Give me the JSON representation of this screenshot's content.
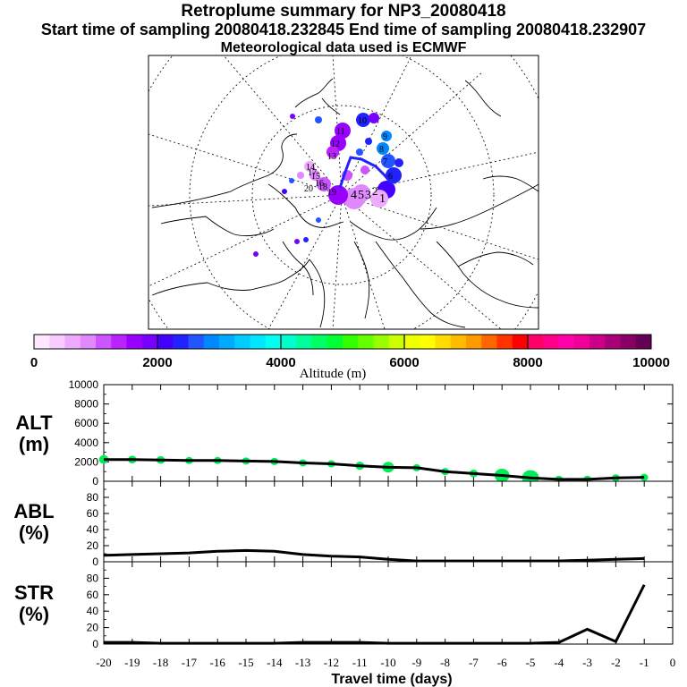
{
  "header": {
    "title": "Retroplume summary for NP3_20080418",
    "sampling_line": "Start time of sampling 20080418.232845     End time of sampling 20080418.232907",
    "met_line": "Meteorological data used is ECMWF"
  },
  "map": {
    "labels": [
      "11",
      "12",
      "13",
      "14",
      "15",
      "16",
      "17",
      "18",
      "19",
      "20",
      "1",
      "2",
      "3",
      "4",
      "5",
      "6",
      "7",
      "8",
      "9",
      "10"
    ]
  },
  "colorbar": {
    "ticks": [
      "0",
      "2000",
      "4000",
      "6000",
      "8000",
      "10000"
    ],
    "label": "Altitude (m)",
    "colors": [
      "#ffe8ff",
      "#f8ccff",
      "#eeaaff",
      "#e088ff",
      "#cc55ff",
      "#bb22ff",
      "#9900ff",
      "#7700ff",
      "#4400ff",
      "#2222ff",
      "#2255ff",
      "#0088ff",
      "#00aaff",
      "#00ccff",
      "#00e6ff",
      "#00ffee",
      "#00ffcc",
      "#00ff99",
      "#00ff66",
      "#00ff33",
      "#33ff00",
      "#66ff00",
      "#99ff00",
      "#ccff00",
      "#eeff00",
      "#ffff00",
      "#ffdd00",
      "#ffbb00",
      "#ff9900",
      "#ff6600",
      "#ff3300",
      "#ff0000",
      "#ff0066",
      "#ff0088",
      "#ff00aa",
      "#ee0099",
      "#cc0088",
      "#aa0077",
      "#880066",
      "#660055"
    ]
  },
  "chart_data": [
    {
      "type": "line",
      "title": "ALT (m)",
      "ylabel_line1": "ALT",
      "ylabel_line2": "(m)",
      "ylim": [
        0,
        10000
      ],
      "yticks": [
        "0",
        "2000",
        "4000",
        "6000",
        "8000",
        "10000"
      ],
      "x": [
        -20,
        -19,
        -18,
        -17,
        -16,
        -15,
        -14,
        -13,
        -12,
        -11,
        -10,
        -9,
        -8,
        -7,
        -6,
        -5,
        -4,
        -3,
        -2,
        -1
      ],
      "values": [
        2250,
        2250,
        2200,
        2150,
        2150,
        2100,
        2050,
        1900,
        1800,
        1600,
        1450,
        1400,
        1000,
        800,
        600,
        350,
        200,
        200,
        350,
        400
      ],
      "spread": [
        900,
        800,
        800,
        700,
        650,
        550,
        500,
        650,
        700,
        850,
        1100,
        700,
        650,
        800,
        1400,
        1600,
        400,
        450,
        550,
        600
      ]
    },
    {
      "type": "line",
      "title": "ABL (%)",
      "ylabel_line1": "ABL",
      "ylabel_line2": "(%)",
      "ylim": [
        0,
        100
      ],
      "yticks": [
        "0",
        "20",
        "40",
        "60",
        "80"
      ],
      "x": [
        -20,
        -19,
        -18,
        -17,
        -16,
        -15,
        -14,
        -13,
        -12,
        -11,
        -10,
        -9,
        -8,
        -7,
        -6,
        -5,
        -4,
        -3,
        -2,
        -1
      ],
      "values": [
        8,
        9,
        10,
        11,
        13,
        14,
        13,
        9,
        7,
        6,
        3,
        1,
        1,
        1,
        1,
        1,
        1,
        2,
        3,
        4
      ]
    },
    {
      "type": "line",
      "title": "STR (%)",
      "ylabel_line1": "STR",
      "ylabel_line2": "(%)",
      "ylim": [
        0,
        100
      ],
      "yticks": [
        "0",
        "20",
        "40",
        "60",
        "80"
      ],
      "x": [
        -20,
        -19,
        -18,
        -17,
        -16,
        -15,
        -14,
        -13,
        -12,
        -11,
        -10,
        -9,
        -8,
        -7,
        -6,
        -5,
        -4,
        -3,
        -2,
        -1
      ],
      "values": [
        2,
        2,
        1,
        1,
        1,
        1,
        1,
        2,
        2,
        2,
        1,
        1,
        1,
        1,
        1,
        1,
        2,
        18,
        3,
        72
      ]
    }
  ],
  "xaxis": {
    "ticks": [
      "-20",
      "-19",
      "-18",
      "-17",
      "-16",
      "-15",
      "-14",
      "-13",
      "-12",
      "-11",
      "-10",
      "-9",
      "-8",
      "-7",
      "-6",
      "-5",
      "-4",
      "-3",
      "-2",
      "-1",
      "0"
    ],
    "label": "Travel time (days)"
  }
}
